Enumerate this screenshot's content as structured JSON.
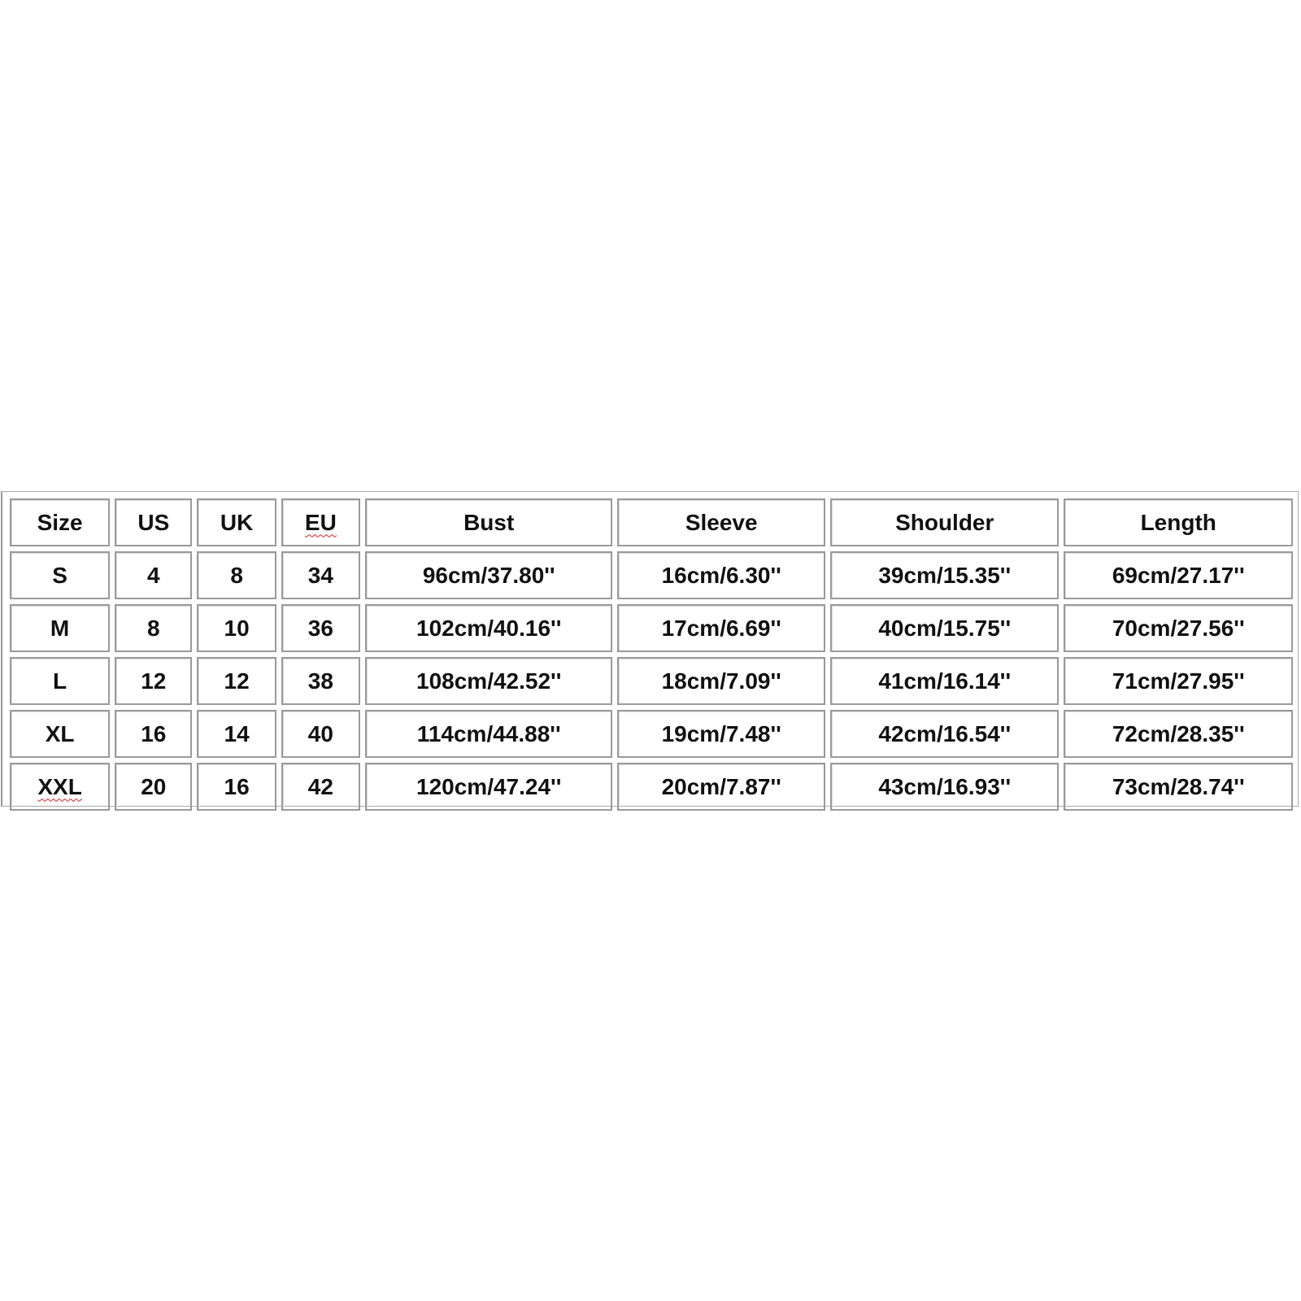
{
  "size_chart": {
    "headers": [
      "Size",
      "US",
      "UK",
      "EU",
      "Bust",
      "Sleeve",
      "Shoulder",
      "Length"
    ],
    "rows": [
      [
        "S",
        "4",
        "8",
        "34",
        "96cm/37.80''",
        "16cm/6.30''",
        "39cm/15.35''",
        "69cm/27.17''"
      ],
      [
        "M",
        "8",
        "10",
        "36",
        "102cm/40.16''",
        "17cm/6.69''",
        "40cm/15.75''",
        "70cm/27.56''"
      ],
      [
        "L",
        "12",
        "12",
        "38",
        "108cm/42.52''",
        "18cm/7.09''",
        "41cm/16.14''",
        "71cm/27.95''"
      ],
      [
        "XL",
        "16",
        "14",
        "40",
        "114cm/44.88''",
        "19cm/7.48''",
        "42cm/16.54''",
        "72cm/28.35''"
      ],
      [
        "XXL",
        "20",
        "16",
        "42",
        "120cm/47.24''",
        "20cm/7.87''",
        "43cm/16.93''",
        "73cm/28.74''"
      ]
    ],
    "spellcheck_marked": [
      "EU",
      "XXL"
    ],
    "colors": {
      "border": "#9a9a9a",
      "text": "#111111",
      "spellcheck": "#d02020"
    }
  }
}
